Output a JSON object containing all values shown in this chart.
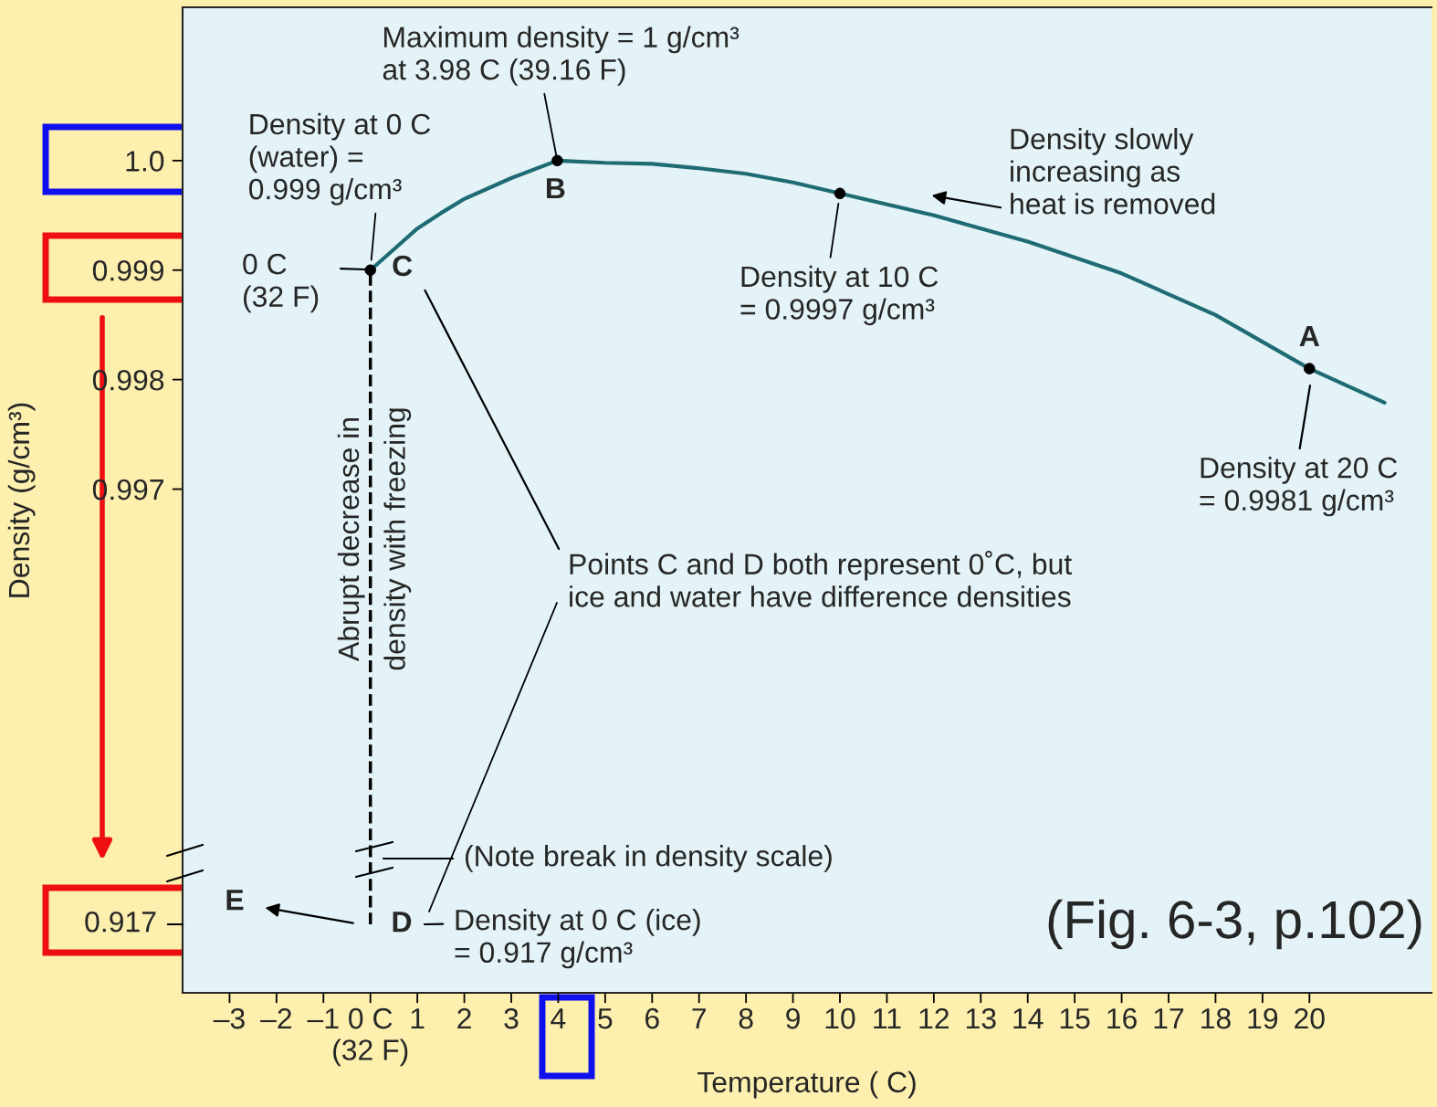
{
  "chart_data": [
    {
      "type": "line",
      "ylabel": "Density (g/cm³)",
      "xlabel": "Temperature ( C)",
      "xlim": [
        -4,
        22.6
      ],
      "ylim": [
        0.9924,
        1.0014
      ],
      "yticks": [
        {
          "value": 1.0,
          "label": "1.0"
        },
        0.999,
        0.998,
        0.997
      ],
      "xticks": [
        {
          "value": -3,
          "label": "–3"
        },
        {
          "value": -2,
          "label": "–2"
        },
        {
          "value": -1,
          "label": "–1"
        },
        {
          "value": 0,
          "label": "0 C\n(32 F)"
        },
        1,
        2,
        3,
        4,
        5,
        6,
        7,
        8,
        9,
        10,
        11,
        12,
        13,
        14,
        15,
        16,
        17,
        18,
        19,
        20
      ],
      "grid": false,
      "series": [
        {
          "color": "#1f6b73",
          "x": [
            0,
            0.5,
            1,
            1.5,
            2,
            3,
            3.98,
            5,
            6,
            7,
            8,
            9,
            10,
            12,
            14,
            16,
            18,
            20,
            21.6
          ],
          "values": [
            0.999,
            0.99919,
            0.99938,
            0.99952,
            0.99965,
            0.99984,
            1.0,
            0.99998,
            0.99997,
            0.99993,
            0.99988,
            0.9998,
            0.9997,
            0.9995,
            0.99926,
            0.99897,
            0.99859,
            0.9981,
            0.99779
          ]
        },
        {
          "type": "scatter",
          "color": "#000000",
          "marker": "circle",
          "x": [
            0,
            3.98,
            10,
            20
          ],
          "values": [
            0.999,
            1.0,
            0.9997,
            0.9981
          ]
        }
      ],
      "ref_lines": [
        {
          "axis": "x",
          "value": 0,
          "color": "#000000",
          "line_style": "dashed"
        }
      ],
      "annotations": [
        {
          "text": "Maximum density = 1 g/cm³\nat 3.98 C (39.16 F)",
          "x": 3.98,
          "y": 1.0
        },
        {
          "text": "Density at 0 C\n(water) =\n0.999 g/cm³",
          "x": 0,
          "y": 0.999
        },
        "0 C\n(32 F)",
        {
          "text": "C",
          "x": 0,
          "y": 0.999
        },
        {
          "text": "B",
          "x": 3.98,
          "y": 1.0
        },
        {
          "text": "Density at 10 C\n= 0.9997 g/cm³",
          "x": 10,
          "y": 0.9997
        },
        "Density slowly\nincreasing as\nheat is removed",
        {
          "text": "A",
          "x": 20,
          "y": 0.9981
        },
        "Density at 20 C\n= 0.9981 g/cm³",
        "Abrupt decrease in\ndensity with freezing",
        "Points C and D both represent 0˚C, but\nice and water have difference densities",
        "(Note break in density scale)"
      ]
    },
    {
      "type": "other",
      "annotations": [
        "0.917",
        "D",
        "Density at 0 C (ice)\n= 0.917 g/cm³",
        "E",
        "(Fig. 6-3, p.102)"
      ]
    }
  ]
}
